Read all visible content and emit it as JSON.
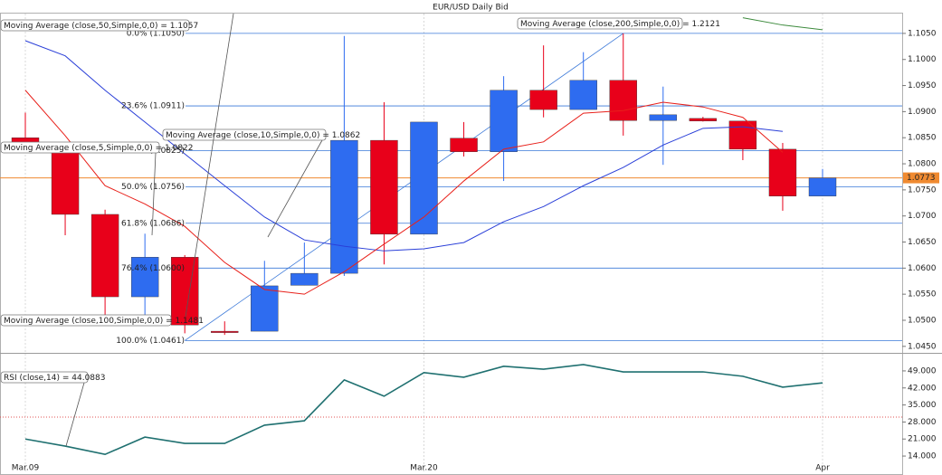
{
  "chart_data": [
    {
      "type": "candlestick",
      "title": "EUR/USD Daily Bid",
      "categories": [
        "Mar.09",
        null,
        null,
        null,
        null,
        null,
        null,
        null,
        null,
        null,
        "Mar.20",
        null,
        null,
        null,
        null,
        null,
        null,
        null,
        null,
        null,
        "Apr"
      ],
      "open": [
        1.085,
        1.0823,
        1.0703,
        1.0545,
        1.0621,
        1.0479,
        1.0479,
        1.0567,
        1.059,
        1.0845,
        1.0665,
        1.0849,
        1.0823,
        1.0941,
        1.0904,
        1.096,
        1.0883,
        1.0887,
        1.0882,
        1.0828,
        1.0738
      ],
      "high": [
        1.0898,
        1.0836,
        1.0712,
        1.0666,
        1.0625,
        1.0498,
        1.0614,
        1.0649,
        1.1045,
        1.0918,
        1.088,
        1.088,
        1.0968,
        1.1027,
        1.1014,
        1.105,
        1.0948,
        1.089,
        1.0882,
        1.084,
        1.079
      ],
      "low": [
        1.0832,
        1.0663,
        1.051,
        1.051,
        1.0475,
        1.0472,
        1.0479,
        1.0567,
        1.0585,
        1.0607,
        1.0665,
        1.0814,
        1.0767,
        1.0889,
        1.0904,
        1.0854,
        1.0798,
        1.0881,
        1.0807,
        1.071,
        1.0738
      ],
      "close": [
        1.084,
        1.0703,
        1.0545,
        1.0621,
        1.0491,
        1.0477,
        1.0566,
        1.059,
        1.0845,
        1.0665,
        1.088,
        1.0823,
        1.0941,
        1.0904,
        1.096,
        1.0883,
        1.0894,
        1.0882,
        1.0828,
        1.0738,
        1.0773
      ],
      "up_color": "#2e6cf0",
      "down_color": "#e8001a",
      "moving_averages": [
        {
          "name": "Moving Average (close,50,Simple,0,0) = 1.1057",
          "color": "#3c8a3c",
          "values": [
            null,
            null,
            null,
            null,
            null,
            null,
            null,
            null,
            null,
            null,
            null,
            null,
            null,
            null,
            null,
            null,
            null,
            null,
            1.108,
            1.1066,
            1.1057
          ]
        },
        {
          "name": "Moving Average (close,10,Simple,0,0) = 1.0862",
          "color": "#2a3fd8",
          "values": [
            1.1036,
            1.1007,
            1.0941,
            1.088,
            1.0819,
            1.0758,
            1.0698,
            1.0654,
            1.0642,
            1.0633,
            1.0637,
            1.0649,
            1.0689,
            1.0718,
            1.0758,
            1.0793,
            1.0836,
            1.0868,
            1.0871,
            1.0862,
            null
          ]
        },
        {
          "name": "Moving Average (close,5,Simple,0,0) = 1.0822",
          "color": "#e8201a",
          "values": [
            1.0941,
            1.0854,
            1.0758,
            1.0723,
            1.068,
            1.0611,
            1.0559,
            1.055,
            1.0593,
            1.0646,
            1.0698,
            1.0767,
            1.0828,
            1.0842,
            1.0897,
            1.0902,
            1.0918,
            1.0909,
            1.0889,
            1.0822,
            null
          ]
        },
        {
          "name": "Moving Average (close,100,Simple,0,0) = 1.1481"
        },
        {
          "name": "Moving Average (close,200,Simple,0,0) = 1.2121"
        }
      ],
      "fibonacci": [
        {
          "value": 1.105,
          "label": "0.0%  (1.1050)"
        },
        {
          "value": 1.0911,
          "label": "23.6%  (1.0911)"
        },
        {
          "value": 1.0825,
          "label": "38.2%  (1.0825)"
        },
        {
          "value": 1.0756,
          "label": "50.0%  (1.0756)"
        },
        {
          "value": 1.0686,
          "label": "61.8%  (1.0686)"
        },
        {
          "value": 1.06,
          "label": "76.4%  (1.0600)"
        },
        {
          "value": 1.0461,
          "label": "100.0%  (1.0461)"
        }
      ],
      "fib_color": "#3a78d8",
      "last_price": {
        "value": 1.0773,
        "label": "1.0773"
      },
      "last_price_color": "#f08a30",
      "ylim": [
        1.0441,
        1.1088
      ],
      "yticks": [
        {
          "value": 1.105,
          "label": "1.1050"
        },
        {
          "value": 1.1,
          "label": "1.1000"
        },
        {
          "value": 1.095,
          "label": "1.0950"
        },
        {
          "value": 1.09,
          "label": "1.0900"
        },
        {
          "value": 1.085,
          "label": "1.0850"
        },
        {
          "value": 1.08,
          "label": "1.0800"
        },
        {
          "value": 1.075,
          "label": "1.0750"
        },
        {
          "value": 1.07,
          "label": "1.0700"
        },
        {
          "value": 1.065,
          "label": "1.0650"
        },
        {
          "value": 1.06,
          "label": "1.0600"
        },
        {
          "value": 1.055,
          "label": "1.0550"
        },
        {
          "value": 1.05,
          "label": "1.0500"
        },
        {
          "value": 1.045,
          "label": "1.0450"
        }
      ]
    },
    {
      "type": "line",
      "series": [
        {
          "name": "RSI (close,14) = 44.0883",
          "color": "#1f7070",
          "values": [
            21.0,
            18.1,
            14.7,
            21.8,
            19.2,
            19.2,
            26.7,
            28.5,
            45.3,
            38.6,
            48.3,
            46.4,
            50.9,
            49.7,
            51.6,
            48.6,
            48.6,
            48.6,
            46.8,
            42.3,
            44.0883
          ]
        }
      ],
      "reference_line": 30,
      "reference_color": "#e05050",
      "ylim": [
        7.7,
        55.3
      ],
      "yticks": [
        {
          "value": 49,
          "label": "49.000"
        },
        {
          "value": 42,
          "label": "42.000"
        },
        {
          "value": 35,
          "label": "35.000"
        },
        {
          "value": 28,
          "label": "28.000"
        },
        {
          "value": 21,
          "label": "21.000"
        },
        {
          "value": 14,
          "label": "14.000"
        }
      ]
    }
  ]
}
